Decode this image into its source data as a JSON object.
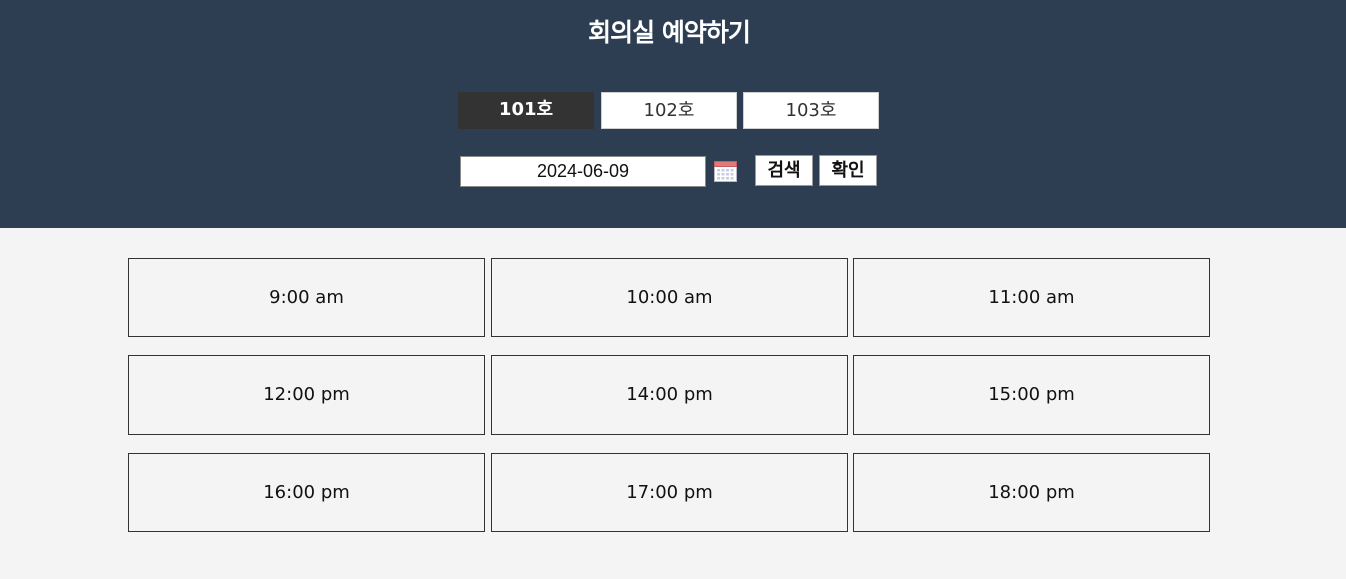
{
  "header": {
    "title": "회의실 예약하기"
  },
  "rooms": [
    {
      "label": "101호",
      "active": true
    },
    {
      "label": "102호",
      "active": false
    },
    {
      "label": "103호",
      "active": false
    }
  ],
  "search": {
    "date_value": "2024-06-09",
    "calendar_icon": "calendar-icon",
    "search_label": "검색",
    "confirm_label": "확인"
  },
  "time_slots": [
    {
      "label": "9:00 am"
    },
    {
      "label": "10:00 am"
    },
    {
      "label": "11:00 am"
    },
    {
      "label": "12:00 pm"
    },
    {
      "label": "14:00 pm"
    },
    {
      "label": "15:00 pm"
    },
    {
      "label": "16:00 pm"
    },
    {
      "label": "17:00 pm"
    },
    {
      "label": "18:00 pm"
    }
  ],
  "colors": {
    "header_bg": "#2e3e52",
    "active_tab_bg": "#333333",
    "page_bg": "#f4f4f4"
  }
}
